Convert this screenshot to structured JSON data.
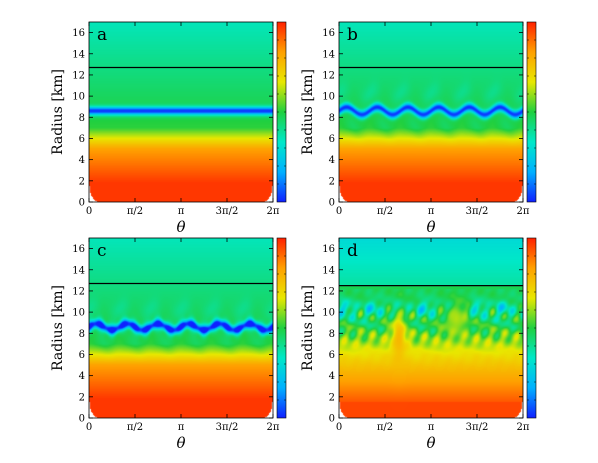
{
  "figure": {
    "panel_labels": [
      "a",
      "b",
      "c",
      "d"
    ],
    "colors": {
      "colormap": [
        "#1020ff",
        "#00b0ff",
        "#00e8c8",
        "#20d040",
        "#e8e800",
        "#ffa000",
        "#ff2000"
      ],
      "boundary_line": "#000000"
    }
  },
  "chart_data": [
    {
      "type": "heatmap",
      "panel": "a",
      "xlabel": "θ",
      "ylabel": "Radius [km]",
      "x_range": [
        0,
        6.2832
      ],
      "ylim": [
        0,
        17
      ],
      "x_ticks": [
        "0",
        "π/2",
        "π",
        "3π/2",
        "2π"
      ],
      "y_ticks": [
        "0",
        "2",
        "4",
        "6",
        "8",
        "10",
        "12",
        "14",
        "16"
      ],
      "boundary_radius": 12.7,
      "low_band": {
        "center": 8.6,
        "wave_amplitude": 0,
        "wave_number": 0,
        "blobs": false
      },
      "colorbar": true,
      "colorbar_tick_labels": false
    },
    {
      "type": "heatmap",
      "panel": "b",
      "xlabel": "θ",
      "ylabel": "Radius [km]",
      "x_range": [
        0,
        6.2832
      ],
      "ylim": [
        0,
        17
      ],
      "x_ticks": [
        "0",
        "π/2",
        "π",
        "3π/2",
        "2π"
      ],
      "y_ticks": [
        "0",
        "2",
        "4",
        "6",
        "8",
        "10",
        "12",
        "14",
        "16"
      ],
      "boundary_radius": 12.7,
      "low_band": {
        "center": 8.6,
        "wave_amplitude": 0.35,
        "wave_number": 6,
        "blobs": false
      },
      "colorbar": true,
      "colorbar_tick_labels": false
    },
    {
      "type": "heatmap",
      "panel": "c",
      "xlabel": "θ",
      "ylabel": "Radius [km]",
      "x_range": [
        0,
        6.2832
      ],
      "ylim": [
        0,
        17
      ],
      "x_ticks": [
        "0",
        "π/2",
        "π",
        "3π/2",
        "2π"
      ],
      "y_ticks": [
        "0",
        "2",
        "4",
        "6",
        "8",
        "10",
        "12",
        "14",
        "16"
      ],
      "boundary_radius": 12.7,
      "low_band": {
        "center": 8.6,
        "wave_amplitude": 0.3,
        "wave_number": 6,
        "blobs": true
      },
      "colorbar": true,
      "colorbar_tick_labels": false
    },
    {
      "type": "heatmap",
      "panel": "d",
      "xlabel": "θ",
      "ylabel": "Radius [km]",
      "x_range": [
        0,
        6.2832
      ],
      "ylim": [
        0,
        17
      ],
      "x_ticks": [
        "0",
        "π/2",
        "π",
        "3π/2",
        "2π"
      ],
      "y_ticks": [
        "0",
        "2",
        "4",
        "6",
        "8",
        "10",
        "12",
        "14",
        "16"
      ],
      "boundary_radius": 12.5,
      "low_band": {
        "center": 8.0,
        "wave_amplitude": 0,
        "wave_number": 0,
        "blobs": false
      },
      "turbulent": true,
      "plumes": [
        {
          "theta": 2.05,
          "radius": 7.5,
          "sigma_theta": 0.28,
          "sigma_r": 2.6,
          "value": 0.78
        },
        {
          "theta": 4.0,
          "radius": 9.4,
          "sigma_theta": 0.45,
          "sigma_r": 1.8,
          "value": 0.62
        }
      ],
      "colorbar": true,
      "colorbar_tick_labels": false
    }
  ]
}
